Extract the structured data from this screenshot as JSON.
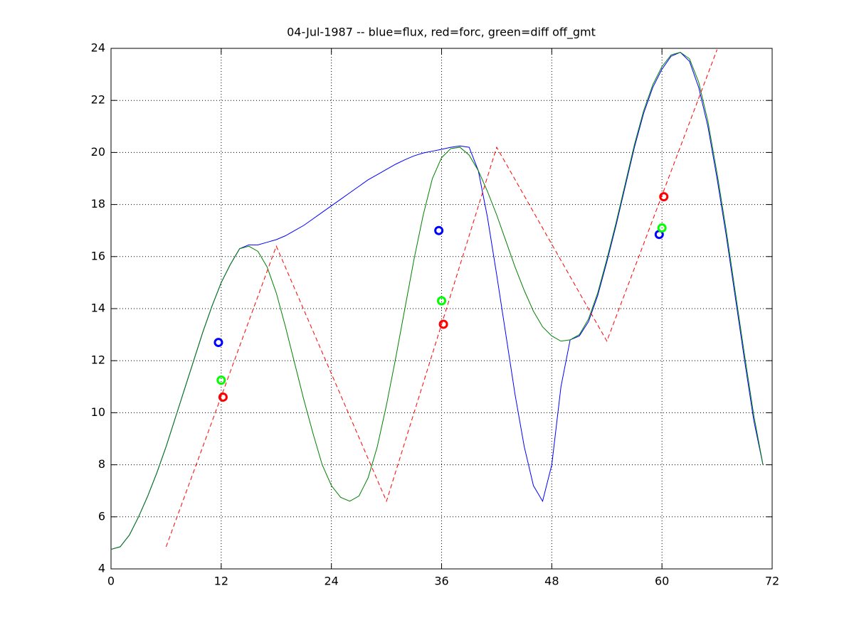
{
  "chart_data": {
    "type": "line",
    "title": "04-Jul-1987 -- blue=flux, red=forc, green=diff off_gmt",
    "xlim": [
      0,
      72
    ],
    "xticks": [
      0,
      12,
      24,
      36,
      48,
      60,
      72
    ],
    "ylim": [
      4,
      24
    ],
    "yticks": [
      4,
      6,
      8,
      10,
      12,
      14,
      16,
      18,
      20,
      22,
      24
    ],
    "grid": true,
    "series": [
      {
        "color": "#0000ff",
        "style": "solid",
        "marker": "none",
        "x": [
          0,
          1,
          2,
          3,
          4,
          5,
          6,
          7,
          8,
          9,
          10,
          11,
          12,
          13,
          14,
          15,
          16,
          17,
          18,
          19,
          20,
          21,
          22,
          23,
          24,
          25,
          26,
          27,
          28,
          29,
          30,
          31,
          32,
          33,
          34,
          35,
          36,
          37,
          38,
          39,
          40,
          41,
          42,
          43,
          44,
          45,
          46,
          47,
          48,
          49,
          50,
          51,
          52,
          53,
          54,
          55,
          56,
          57,
          58,
          59,
          60,
          61,
          62,
          63,
          64,
          65,
          66,
          67,
          68,
          69,
          70,
          71
        ],
        "values": [
          4.75,
          4.85,
          5.3,
          6.0,
          6.8,
          7.7,
          8.7,
          9.8,
          10.9,
          12.0,
          13.1,
          14.1,
          15.0,
          15.7,
          16.3,
          16.45,
          16.45,
          16.55,
          16.65,
          16.8,
          17.0,
          17.2,
          17.45,
          17.7,
          17.95,
          18.2,
          18.45,
          18.7,
          18.95,
          19.15,
          19.35,
          19.55,
          19.72,
          19.87,
          19.98,
          20.05,
          20.12,
          20.2,
          20.25,
          20.2,
          19.3,
          17.5,
          15.3,
          13.0,
          10.7,
          8.7,
          7.2,
          6.6,
          8.0,
          11.0,
          12.8,
          12.95,
          13.5,
          14.5,
          15.8,
          17.2,
          18.7,
          20.2,
          21.5,
          22.5,
          23.2,
          23.7,
          23.85,
          23.5,
          22.5,
          21.0,
          19.0,
          16.8,
          14.4,
          12.0,
          9.7,
          8.0
        ]
      },
      {
        "color": "#008000",
        "style": "solid",
        "marker": "none",
        "x": [
          0,
          1,
          2,
          3,
          4,
          5,
          6,
          7,
          8,
          9,
          10,
          11,
          12,
          13,
          14,
          15,
          16,
          17,
          18,
          19,
          20,
          21,
          22,
          23,
          24,
          25,
          26,
          27,
          28,
          29,
          30,
          31,
          32,
          33,
          34,
          35,
          36,
          37,
          38,
          39,
          40,
          41,
          42,
          43,
          44,
          45,
          46,
          47,
          48,
          49,
          50,
          51,
          52,
          53,
          54,
          55,
          56,
          57,
          58,
          59,
          60,
          61,
          62,
          63,
          64,
          65,
          66,
          67,
          68,
          69,
          70,
          71
        ],
        "values": [
          4.75,
          4.85,
          5.3,
          6.0,
          6.8,
          7.7,
          8.7,
          9.8,
          10.9,
          12.0,
          13.1,
          14.1,
          15.0,
          15.7,
          16.3,
          16.4,
          16.2,
          15.6,
          14.6,
          13.3,
          11.9,
          10.5,
          9.2,
          8.0,
          7.2,
          6.75,
          6.6,
          6.8,
          7.5,
          8.7,
          10.3,
          12.1,
          14.0,
          15.9,
          17.6,
          19.0,
          19.8,
          20.15,
          20.2,
          19.9,
          19.3,
          18.5,
          17.6,
          16.6,
          15.6,
          14.7,
          13.9,
          13.3,
          12.95,
          12.75,
          12.8,
          13.0,
          13.6,
          14.6,
          15.9,
          17.3,
          18.8,
          20.3,
          21.6,
          22.6,
          23.3,
          23.75,
          23.85,
          23.6,
          22.7,
          21.2,
          19.2,
          17.0,
          14.6,
          12.2,
          9.9,
          8.0
        ]
      },
      {
        "color": "#ff0000",
        "style": "dashed",
        "marker": "none",
        "x": [
          6,
          18,
          30,
          42,
          54,
          66
        ],
        "values": [
          4.85,
          16.4,
          6.6,
          20.2,
          12.75,
          23.95
        ]
      },
      {
        "color": "#0000ff",
        "style": "none",
        "marker": "o",
        "x": [
          11.7,
          35.7,
          59.7
        ],
        "values": [
          12.7,
          17.0,
          16.85
        ]
      },
      {
        "color": "#00ff00",
        "style": "none",
        "marker": "o",
        "x": [
          12,
          36,
          60
        ],
        "values": [
          11.25,
          14.3,
          17.1
        ]
      },
      {
        "color": "#ff0000",
        "style": "none",
        "marker": "o",
        "x": [
          12.2,
          36.2,
          60.2
        ],
        "values": [
          10.6,
          13.4,
          18.3
        ]
      }
    ]
  }
}
